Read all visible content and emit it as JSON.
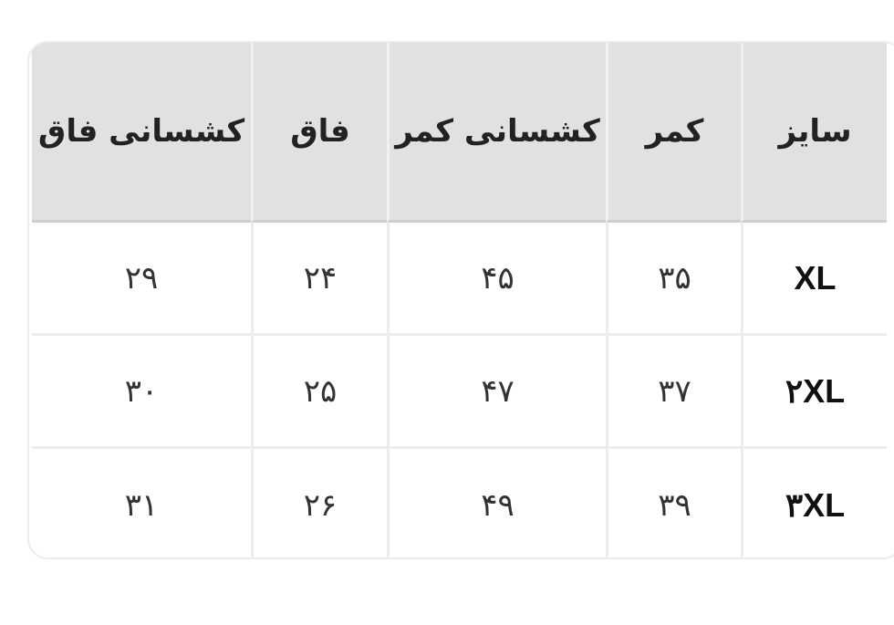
{
  "table": {
    "headers": [
      "سایز",
      "کمر",
      "کشسانی کمر",
      "فاق",
      "کشسانی فاق"
    ],
    "rows": [
      [
        "XL",
        "۳۵",
        "۴۵",
        "۲۴",
        "۲۹"
      ],
      [
        "۲XL",
        "۳۷",
        "۴۷",
        "۲۵",
        "۳۰"
      ],
      [
        "۳XL",
        "۳۹",
        "۴۹",
        "۲۶",
        "۳۱"
      ]
    ]
  }
}
